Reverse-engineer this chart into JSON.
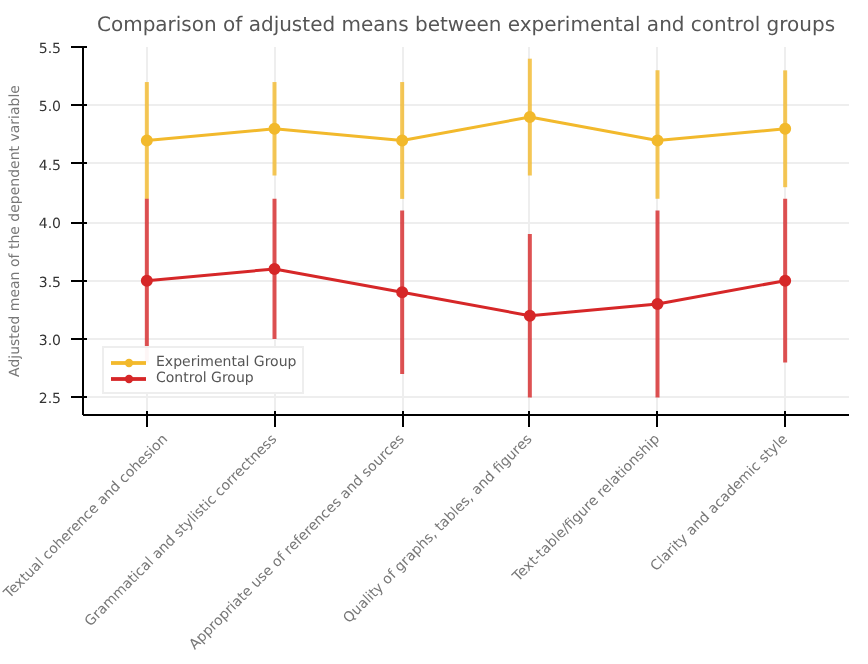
{
  "chart_data": {
    "type": "line",
    "title": "Comparison of adjusted means between experimental and control groups",
    "ylabel": "Adjusted mean of the dependent variable",
    "categories": [
      "Textual coherence and cohesion",
      "Grammatical and stylistic correctness",
      "Appropriate use of references and sources",
      "Quality of graphs, tables, and figures",
      "Text-table/figure relationship",
      "Clarity and academic style"
    ],
    "series": [
      {
        "name": "Experimental Group",
        "color": "#f2b92c",
        "values": [
          4.7,
          4.8,
          4.7,
          4.9,
          4.7,
          4.8
        ],
        "errors": [
          [
            4.2,
            5.2
          ],
          [
            4.4,
            5.2
          ],
          [
            4.2,
            5.2
          ],
          [
            4.4,
            5.4
          ],
          [
            4.2,
            5.3
          ],
          [
            4.3,
            5.3
          ]
        ]
      },
      {
        "name": "Control Group",
        "color": "#d62728",
        "values": [
          3.5,
          3.6,
          3.4,
          3.2,
          3.3,
          3.5
        ],
        "errors": [
          [
            2.8,
            4.2
          ],
          [
            3.0,
            4.2
          ],
          [
            2.7,
            4.1
          ],
          [
            2.5,
            3.9
          ],
          [
            2.5,
            4.1
          ],
          [
            2.8,
            4.2
          ]
        ]
      }
    ],
    "ylim": [
      2.35,
      5.5
    ],
    "yticks": [
      {
        "value": 2.5,
        "label": "2.5"
      },
      {
        "value": 3.0,
        "label": "3.0"
      },
      {
        "value": 3.5,
        "label": "3.5"
      },
      {
        "value": 4.0,
        "label": "4.0"
      },
      {
        "value": 4.5,
        "label": "4.5"
      },
      {
        "value": 5.0,
        "label": "5.0"
      },
      {
        "value": 5.5,
        "label": "5.5"
      }
    ],
    "grid": true,
    "legend": "bottom left",
    "marker": "circle",
    "line_style": "solid"
  }
}
